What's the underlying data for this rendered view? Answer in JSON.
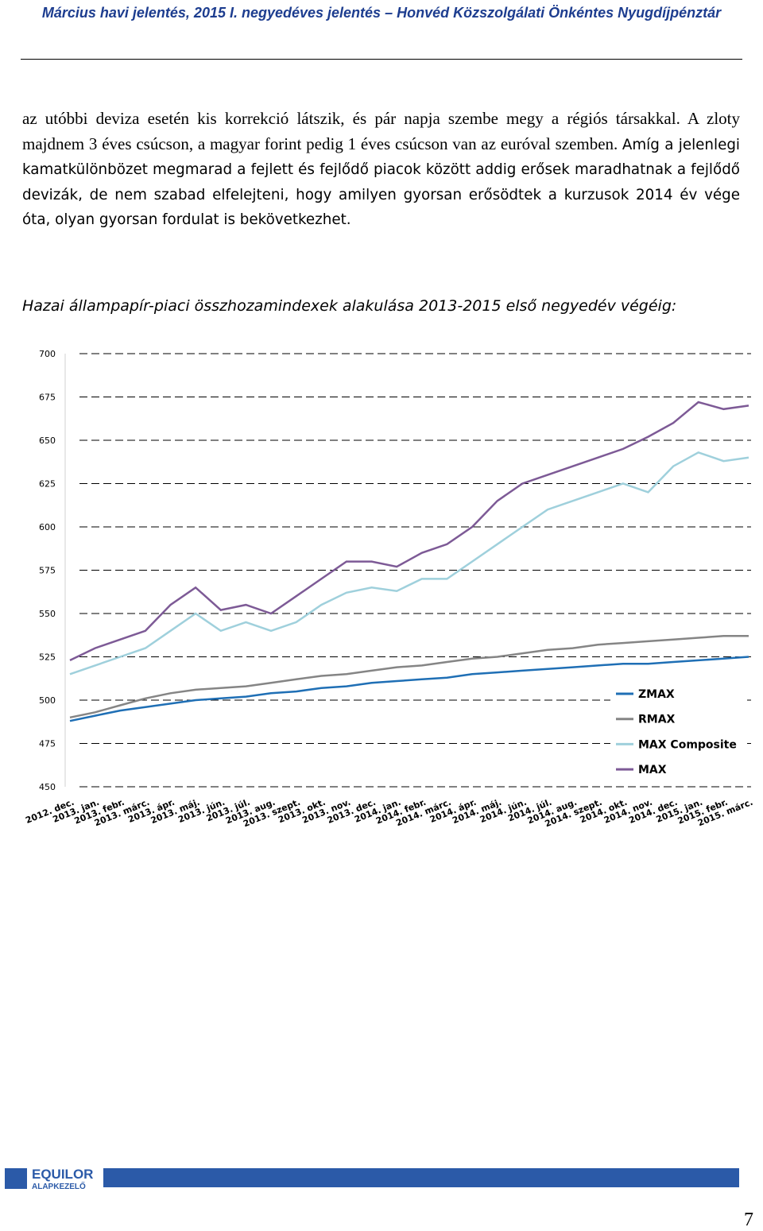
{
  "header": {
    "title": "Március havi jelentés, 2015 I. negyedéves jelentés – Honvéd Közszolgálati Önkéntes Nyugdíjpénztár"
  },
  "body": {
    "paragraph_serif": "az utóbbi deviza esetén kis korrekció látszik, és pár napja szembe megy a régiós társakkal. A zloty majdnem 3 éves csúcson, a magyar forint pedig 1 éves csúcson van az euróval szemben.",
    "paragraph_sans": "Amíg a jelenlegi kamatkülönbözet megmarad a fejlett és fejlődő piacok között addig erősek maradhatnak a fejlődő devizák, de nem szabad elfelejteni, hogy amilyen gyorsan erősödtek a kurzusok 2014 év vége óta, olyan gyorsan fordulat is bekövetkezhet.",
    "chart_caption": "Hazai állampapír-piaci összhozamindexek alakulása 2013-2015 első negyedév végéig:"
  },
  "chart_data": {
    "type": "line",
    "categories": [
      "2012. dec.",
      "2013. jan.",
      "2013. febr.",
      "2013. márc.",
      "2013. ápr.",
      "2013. máj.",
      "2013. jún.",
      "2013. júl.",
      "2013. aug.",
      "2013. szept.",
      "2013. okt.",
      "2013. nov.",
      "2013. dec.",
      "2014. jan.",
      "2014. febr.",
      "2014. márc.",
      "2014. ápr.",
      "2014. máj.",
      "2014. jún.",
      "2014. júl.",
      "2014. aug.",
      "2014. szept.",
      "2014. okt.",
      "2014. nov.",
      "2014. dec.",
      "2015. jan.",
      "2015. febr.",
      "2015. márc."
    ],
    "series": [
      {
        "name": "ZMAX",
        "color": "#1f6fb5",
        "values": [
          488,
          491,
          494,
          496,
          498,
          500,
          501,
          502,
          504,
          505,
          507,
          508,
          510,
          511,
          512,
          513,
          515,
          516,
          517,
          518,
          519,
          520,
          521,
          521,
          522,
          523,
          524,
          525
        ]
      },
      {
        "name": "RMAX",
        "color": "#858585",
        "values": [
          490,
          493,
          497,
          501,
          504,
          506,
          507,
          508,
          510,
          512,
          514,
          515,
          517,
          519,
          520,
          522,
          524,
          525,
          527,
          529,
          530,
          532,
          533,
          534,
          535,
          536,
          537,
          537
        ]
      },
      {
        "name": "MAX Composite",
        "color": "#9fd0dc",
        "values": [
          515,
          520,
          525,
          530,
          540,
          550,
          540,
          545,
          540,
          545,
          555,
          562,
          565,
          563,
          570,
          570,
          580,
          590,
          600,
          610,
          615,
          620,
          625,
          620,
          635,
          643,
          638,
          640
        ]
      },
      {
        "name": "MAX",
        "color": "#7d5a96",
        "values": [
          523,
          530,
          535,
          540,
          555,
          565,
          552,
          555,
          550,
          560,
          570,
          580,
          580,
          577,
          585,
          590,
          600,
          615,
          625,
          630,
          635,
          640,
          645,
          652,
          660,
          672,
          668,
          670
        ]
      }
    ],
    "ylim": [
      450,
      700
    ],
    "yticks": [
      450,
      475,
      500,
      525,
      550,
      575,
      600,
      625,
      650,
      675,
      700
    ],
    "grid": true,
    "legend": "lower right"
  },
  "footer": {
    "logo_name": "EQUILOR",
    "logo_sub": "ALAPKEZELŐ",
    "page_number": "7"
  }
}
